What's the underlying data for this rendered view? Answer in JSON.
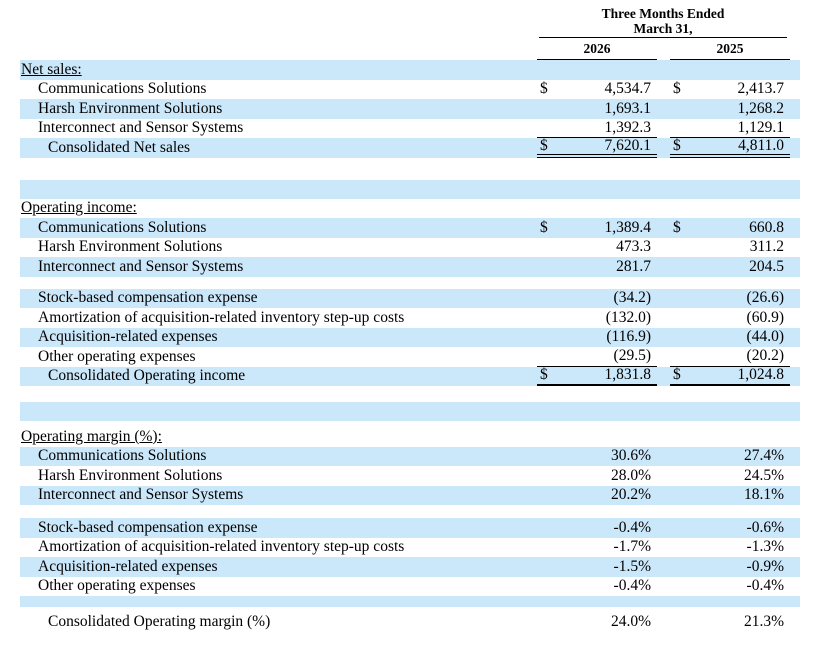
{
  "colors": {
    "row_highlight": "#cbe7fa",
    "text": "#000000",
    "page_background": "#ffffff"
  },
  "header": {
    "period_line1": "Three Months Ended",
    "period_line2": "March 31,",
    "years": [
      "2026",
      "2025"
    ]
  },
  "table": {
    "sections": [
      {
        "title": "Net sales:",
        "rows": [
          {
            "label": "Communications Solutions",
            "d1": "$",
            "v1": "4,534.7",
            "d2": "$",
            "v2": "2,413.7"
          },
          {
            "label": "Harsh Environment Solutions",
            "d1": "",
            "v1": "1,693.1",
            "d2": "",
            "v2": "1,268.2"
          },
          {
            "label": "Interconnect and Sensor Systems",
            "d1": "",
            "v1": "1,392.3",
            "d2": "",
            "v2": "1,129.1"
          },
          {
            "label": "Consolidated Net sales",
            "d1": "$",
            "v1": "7,620.1",
            "d2": "$",
            "v2": "4,811.0"
          }
        ]
      },
      {
        "title": "Operating income:",
        "rows": [
          {
            "label": "Communications Solutions",
            "d1": "$",
            "v1": "1,389.4",
            "d2": "$",
            "v2": "660.8"
          },
          {
            "label": "Harsh Environment Solutions",
            "d1": "",
            "v1": "473.3",
            "d2": "",
            "v2": "311.2"
          },
          {
            "label": "Interconnect and Sensor Systems",
            "d1": "",
            "v1": "281.7",
            "d2": "",
            "v2": "204.5"
          },
          {
            "label": "Stock-based compensation expense",
            "d1": "",
            "v1": "(34.2)",
            "d2": "",
            "v2": "(26.6)"
          },
          {
            "label": "Amortization of acquisition-related inventory step-up costs",
            "d1": "",
            "v1": "(132.0)",
            "d2": "",
            "v2": "(60.9)"
          },
          {
            "label": "Acquisition-related expenses",
            "d1": "",
            "v1": "(116.9)",
            "d2": "",
            "v2": "(44.0)"
          },
          {
            "label": "Other operating expenses",
            "d1": "",
            "v1": "(29.5)",
            "d2": "",
            "v2": "(20.2)"
          },
          {
            "label": "Consolidated Operating income",
            "d1": "$",
            "v1": "1,831.8",
            "d2": "$",
            "v2": "1,024.8"
          }
        ]
      },
      {
        "title": "Operating margin (%):",
        "rows": [
          {
            "label": "Communications Solutions",
            "d1": "",
            "v1": "30.6%",
            "d2": "",
            "v2": "27.4%"
          },
          {
            "label": "Harsh Environment Solutions",
            "d1": "",
            "v1": "28.0%",
            "d2": "",
            "v2": "24.5%"
          },
          {
            "label": "Interconnect and Sensor Systems",
            "d1": "",
            "v1": "20.2%",
            "d2": "",
            "v2": "18.1%"
          },
          {
            "label": "Stock-based compensation expense",
            "d1": "",
            "v1": "-0.4%",
            "d2": "",
            "v2": "-0.6%"
          },
          {
            "label": "Amortization of acquisition-related inventory step-up costs",
            "d1": "",
            "v1": "-1.7%",
            "d2": "",
            "v2": "-1.3%"
          },
          {
            "label": "Acquisition-related expenses",
            "d1": "",
            "v1": "-1.5%",
            "d2": "",
            "v2": "-0.9%"
          },
          {
            "label": "Other operating expenses",
            "d1": "",
            "v1": "-0.4%",
            "d2": "",
            "v2": "-0.4%"
          },
          {
            "label": "Consolidated Operating margin (%)",
            "d1": "",
            "v1": "24.0%",
            "d2": "",
            "v2": "21.3%"
          }
        ]
      }
    ]
  }
}
